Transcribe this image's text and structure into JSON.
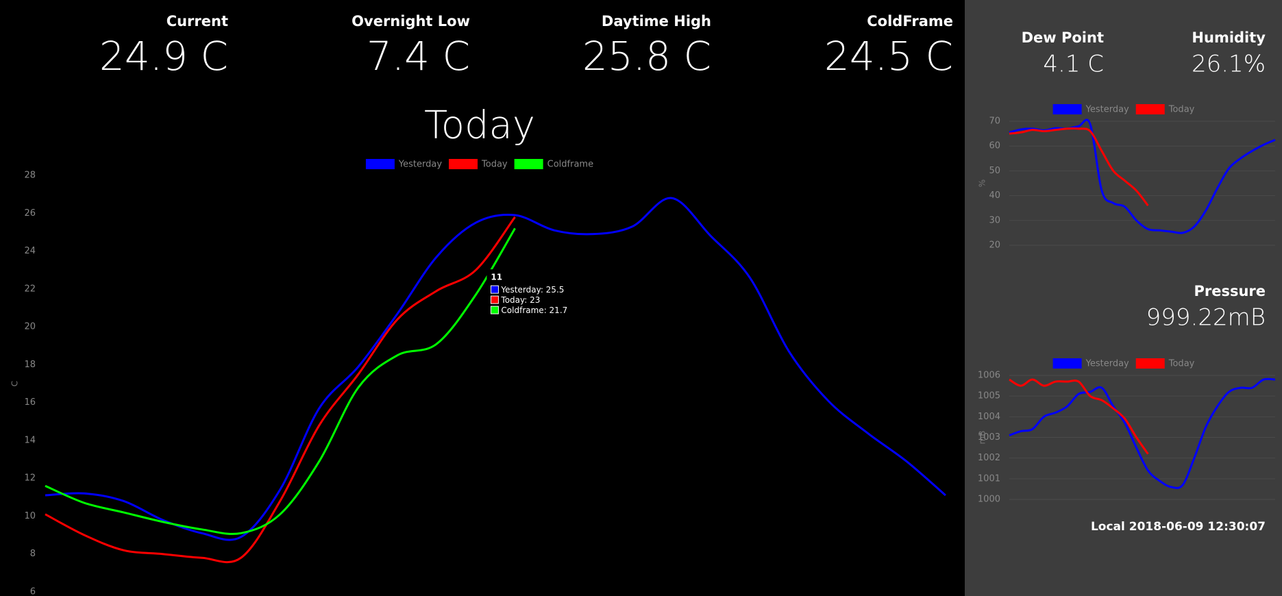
{
  "header": {
    "stats": [
      {
        "label": "Current",
        "value": "24.9 C"
      },
      {
        "label": "Overnight Low",
        "value": "7.4 C"
      },
      {
        "label": "Daytime High",
        "value": "25.8 C"
      },
      {
        "label": "ColdFrame",
        "value": "24.5 C"
      }
    ]
  },
  "side": {
    "stats": [
      {
        "label": "Dew Point",
        "value": "4.1 C"
      },
      {
        "label": "Humidity",
        "value": "26.1%"
      },
      {
        "label": "Pressure",
        "value": "999.22mB"
      }
    ],
    "timestamp": "Local 2018-06-09 12:30:07"
  },
  "chart_data": [
    {
      "type": "line",
      "title": "Today",
      "ylabel": "C",
      "categories": [
        null,
        null,
        null,
        null,
        null,
        null,
        null,
        null,
        null,
        null,
        null,
        "11",
        null,
        null,
        null,
        null,
        null,
        null,
        null,
        null,
        null,
        null,
        null,
        null
      ],
      "series": [
        {
          "name": "Yesterday",
          "color": "#0000ff",
          "values": [
            11.1,
            11.2,
            10.8,
            9.8,
            9.1,
            8.9,
            11.4,
            15.7,
            17.9,
            20.7,
            23.7,
            25.5,
            25.9,
            25.1,
            24.9,
            25.3,
            26.8,
            24.8,
            22.6,
            18.7,
            16.1,
            14.4,
            12.9,
            11.1
          ]
        },
        {
          "name": "Today",
          "color": "#ff0000",
          "values": [
            10.1,
            9.0,
            8.2,
            8.0,
            7.8,
            7.8,
            10.8,
            14.8,
            17.5,
            20.4,
            21.9,
            23,
            25.8,
            null,
            null,
            null,
            null,
            null,
            null,
            null,
            null,
            null,
            null,
            null
          ]
        },
        {
          "name": "Coldframe",
          "color": "#00ff00",
          "values": [
            11.6,
            10.7,
            10.2,
            9.7,
            9.3,
            9.1,
            10.1,
            12.9,
            16.8,
            18.5,
            19.1,
            21.7,
            25.2,
            null,
            null,
            null,
            null,
            null,
            null,
            null,
            null,
            null,
            null,
            null
          ]
        }
      ],
      "ylim": [
        6,
        28
      ],
      "yticks": [
        6,
        8,
        10,
        12,
        14,
        16,
        18,
        20,
        22,
        24,
        26,
        28
      ],
      "grid": false
    },
    {
      "type": "line",
      "ylabel": "%",
      "categories": [
        null,
        null,
        null,
        null,
        null,
        null,
        null,
        null,
        null,
        null,
        null,
        null,
        null,
        null,
        null,
        null,
        null,
        null,
        null,
        null,
        null,
        null,
        null,
        null
      ],
      "series": [
        {
          "name": "Yesterday",
          "color": "#0000ff",
          "values": [
            65.5,
            66.7,
            67,
            66.3,
            67.2,
            67,
            68,
            68.8,
            42,
            37,
            35.5,
            30,
            26.5,
            26,
            25.5,
            25,
            27.5,
            34,
            43,
            51,
            55,
            58,
            60.5,
            62.5
          ]
        },
        {
          "name": "Today",
          "color": "#ff0000",
          "values": [
            65,
            65.5,
            66.5,
            66,
            66.5,
            67,
            67,
            66,
            58,
            50,
            46,
            42,
            36,
            null,
            null,
            null,
            null,
            null,
            null,
            null,
            null,
            null,
            null,
            null
          ]
        }
      ],
      "ylim": [
        20,
        70
      ],
      "yticks": [
        20,
        30,
        40,
        50,
        60,
        70
      ],
      "grid": true
    },
    {
      "type": "line",
      "ylabel": "mB",
      "categories": [
        null,
        null,
        null,
        null,
        null,
        null,
        null,
        null,
        null,
        null,
        null,
        null,
        null,
        null,
        null,
        null,
        null,
        null,
        null,
        null,
        null,
        null,
        null,
        null
      ],
      "series": [
        {
          "name": "Yesterday",
          "color": "#0000ff",
          "values": [
            1003.1,
            1003.3,
            1003.4,
            1004.0,
            1004.2,
            1004.5,
            1005.1,
            1005.2,
            1005.4,
            1004.5,
            1003.7,
            1002.5,
            1001.4,
            1000.9,
            1000.6,
            1000.7,
            1002.0,
            1003.5,
            1004.5,
            1005.2,
            1005.4,
            1005.4,
            1005.8,
            1005.8
          ]
        },
        {
          "name": "Today",
          "color": "#ff0000",
          "values": [
            1005.8,
            1005.5,
            1005.8,
            1005.5,
            1005.7,
            1005.7,
            1005.7,
            1005.0,
            1004.8,
            1004.4,
            1003.9,
            1003.0,
            1002.2,
            null,
            null,
            null,
            null,
            null,
            null,
            null,
            null,
            null,
            null,
            null
          ]
        }
      ],
      "ylim": [
        1000,
        1006
      ],
      "yticks": [
        1000,
        1001,
        1002,
        1003,
        1004,
        1005,
        1006
      ],
      "grid": true
    }
  ]
}
